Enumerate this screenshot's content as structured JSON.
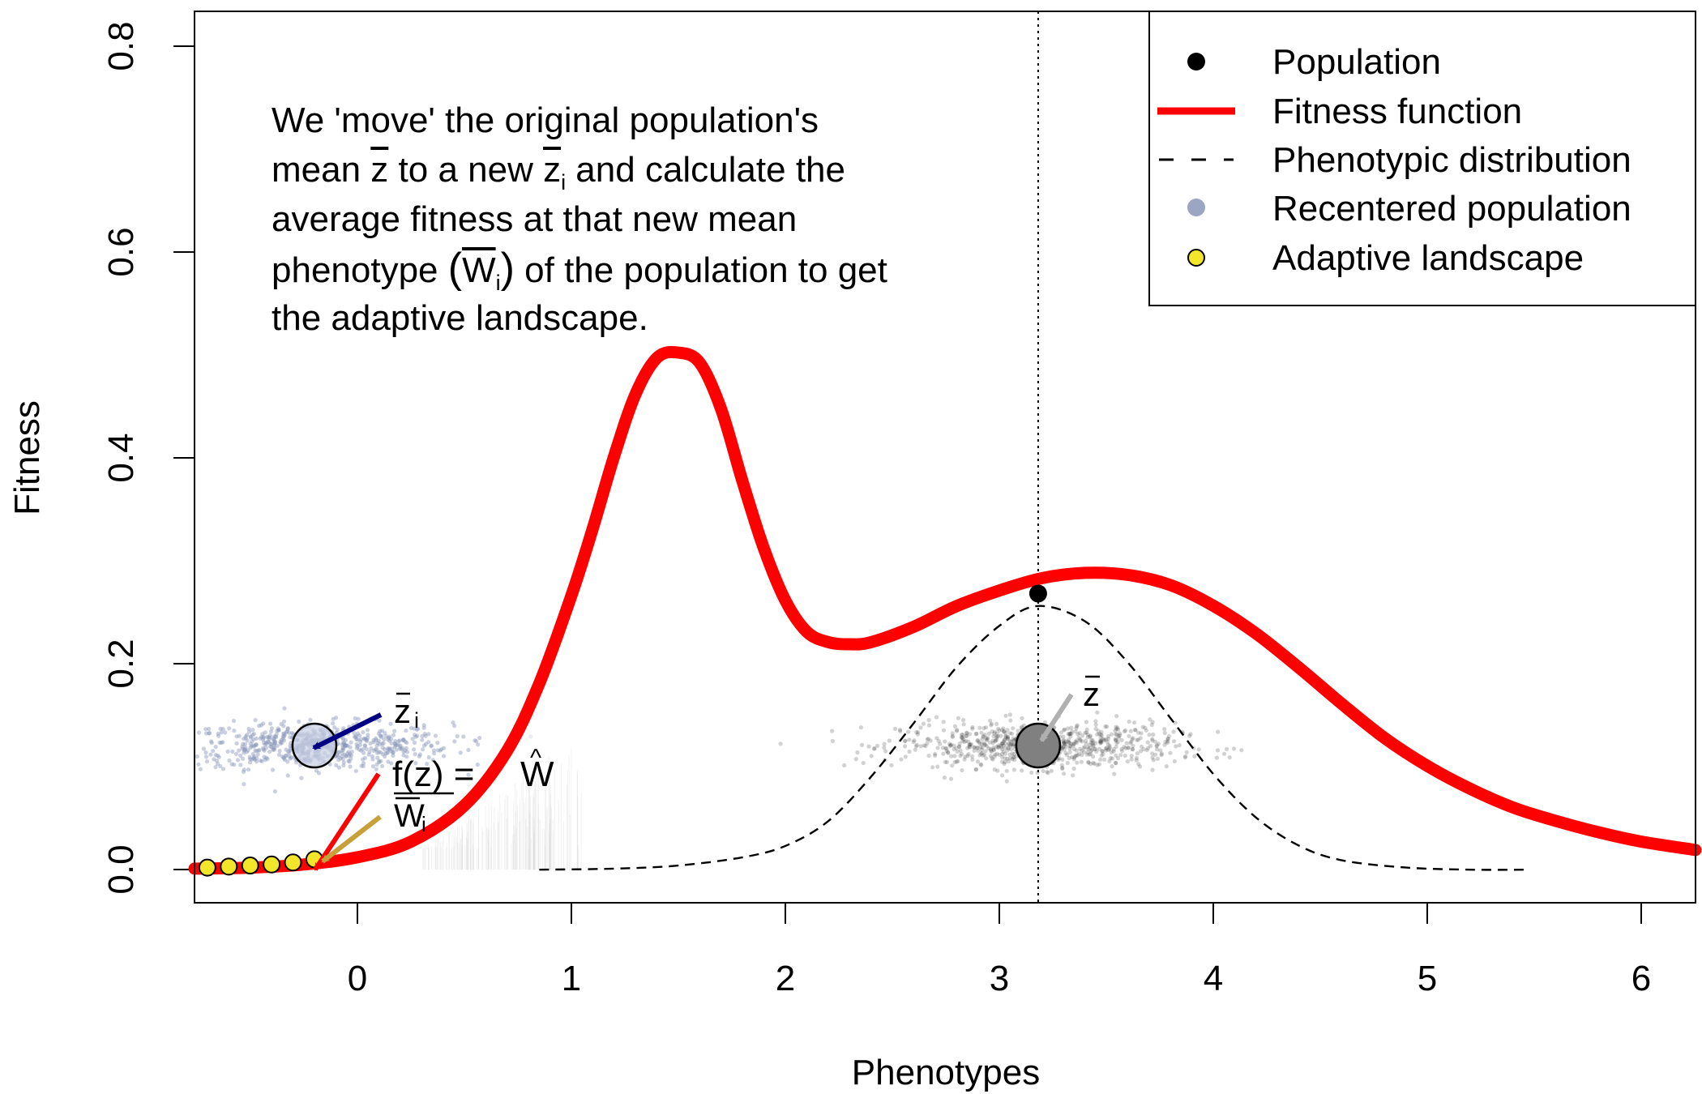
{
  "chart_data": {
    "type": "line",
    "title": "",
    "xlabel": "Phenotypes",
    "ylabel": "Fitness",
    "xlim": [
      -0.76,
      6.25
    ],
    "ylim": [
      -0.032,
      0.83
    ],
    "x_ticks": [
      0,
      1,
      2,
      3,
      4,
      5,
      6
    ],
    "y_ticks": [
      0.0,
      0.2,
      0.4,
      0.6,
      0.8
    ],
    "x_tick_labels": [
      "0",
      "1",
      "2",
      "3",
      "4",
      "5",
      "6"
    ],
    "y_tick_labels": [
      "0.0",
      "0.2",
      "0.4",
      "0.6",
      "0.8"
    ],
    "grid": false,
    "legend_position": "top-right",
    "legend": [
      {
        "label": "Population",
        "symbol": "point",
        "color": "#000000"
      },
      {
        "label": "Fitness function",
        "symbol": "line",
        "color": "#ff0000"
      },
      {
        "label": "Phenotypic distribution",
        "symbol": "dashed-line",
        "color": "#000000"
      },
      {
        "label": "Recentered population",
        "symbol": "point",
        "color": "#8a96b8"
      },
      {
        "label": "Adaptive landscape",
        "symbol": "point",
        "color": "#f2e52a"
      }
    ],
    "series": [
      {
        "name": "Fitness function",
        "color": "#ff0000",
        "x": [
          -0.76,
          -0.5,
          -0.25,
          0.0,
          0.25,
          0.5,
          0.7,
          0.85,
          1.0,
          1.1,
          1.2,
          1.3,
          1.4,
          1.5,
          1.6,
          1.7,
          1.8,
          1.9,
          2.0,
          2.1,
          2.2,
          2.3,
          2.4,
          2.6,
          2.8,
          3.0,
          3.2,
          3.4,
          3.6,
          3.8,
          4.0,
          4.2,
          4.4,
          4.6,
          4.8,
          5.0,
          5.2,
          5.4,
          5.6,
          5.8,
          6.0,
          6.25
        ],
        "y": [
          0.001,
          0.002,
          0.005,
          0.012,
          0.027,
          0.062,
          0.115,
          0.18,
          0.265,
          0.33,
          0.4,
          0.46,
          0.495,
          0.5,
          0.49,
          0.445,
          0.375,
          0.31,
          0.26,
          0.23,
          0.22,
          0.218,
          0.22,
          0.235,
          0.255,
          0.27,
          0.282,
          0.287,
          0.285,
          0.275,
          0.255,
          0.228,
          0.195,
          0.16,
          0.127,
          0.1,
          0.078,
          0.06,
          0.047,
          0.036,
          0.027,
          0.019
        ]
      },
      {
        "name": "Phenotypic distribution",
        "color": "#000000",
        "x": [
          0.85,
          1.2,
          1.5,
          1.8,
          2.0,
          2.2,
          2.4,
          2.6,
          2.8,
          3.0,
          3.18,
          3.4,
          3.6,
          3.8,
          4.0,
          4.2,
          4.4,
          4.6,
          4.9,
          5.2,
          5.45
        ],
        "y": [
          0.0,
          0.001,
          0.004,
          0.012,
          0.023,
          0.047,
          0.09,
          0.142,
          0.196,
          0.236,
          0.255,
          0.24,
          0.2,
          0.146,
          0.092,
          0.05,
          0.023,
          0.009,
          0.002,
          0.0,
          0.0
        ]
      },
      {
        "name": "Adaptive landscape",
        "color": "#f2e52a",
        "x": [
          -0.7,
          -0.6,
          -0.5,
          -0.4,
          -0.3,
          -0.2
        ],
        "y": [
          0.002,
          0.003,
          0.004,
          0.005,
          0.007,
          0.01
        ]
      }
    ],
    "population_point": {
      "x": 3.18,
      "y": 0.267
    },
    "mean_line_x": 3.18,
    "original_mean_circle": {
      "x": 3.18,
      "y": 0.12
    },
    "recentered_mean_circle": {
      "x": -0.2,
      "y": 0.12
    }
  },
  "annotation": {
    "line1": "We 'move' the original population's",
    "line2_a": "mean ",
    "line2_zbar": "z",
    "line2_b": " to a new ",
    "line2_zi": "z",
    "line2_sub": "i",
    "line2_c": " and calculate the",
    "line3": "average fitness at that new mean",
    "line4_a": "phenotype ",
    "line4_w": "W",
    "line4_sub": "i",
    "line4_b": " of the population to get",
    "line5": "the adaptive landscape."
  },
  "labels": {
    "zbar": "z",
    "zi": "z",
    "zi_sub": "i",
    "fz": "f(z) = ",
    "what": "W",
    "hat": "^",
    "wi": "W",
    "wi_sub": "i"
  },
  "colors": {
    "fitness": "#ff0000",
    "recentered": "#8a96b8",
    "population_cloud": "#9a9a9a",
    "adaptive": "#f2e52a",
    "arrow_blue": "#000080",
    "arrow_red": "#ff0000",
    "arrow_gold": "#c8a03a",
    "arrow_grey": "#b0b0b0"
  }
}
